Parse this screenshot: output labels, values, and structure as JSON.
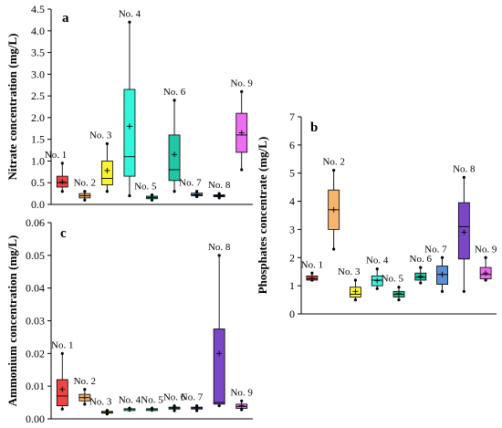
{
  "chart_data": [
    {
      "panel": "a",
      "type": "box",
      "ylabel": "Nitrate concentration (mg/L)",
      "ylim": [
        0,
        4.5
      ],
      "yticks": [
        "0.0",
        "0.5",
        "1.0",
        "1.5",
        "2.0",
        "2.5",
        "3.0",
        "3.5",
        "4.0",
        "4.5"
      ],
      "boxes": [
        {
          "label": "No. 1",
          "color": "#ef4444",
          "min": 0.3,
          "q1": 0.4,
          "median": 0.5,
          "q3": 0.65,
          "max": 0.95,
          "mean": 0.52
        },
        {
          "label": "No. 2",
          "color": "#f5b56d",
          "min": 0.1,
          "q1": 0.15,
          "median": 0.2,
          "q3": 0.25,
          "max": 0.3,
          "mean": 0.2
        },
        {
          "label": "No. 3",
          "color": "#f9f42e",
          "min": 0.3,
          "q1": 0.45,
          "median": 0.6,
          "q3": 1.0,
          "max": 1.4,
          "mean": 0.78
        },
        {
          "label": "No. 4",
          "color": "#33f5d9",
          "min": 0.2,
          "q1": 0.65,
          "median": 1.1,
          "q3": 2.65,
          "max": 4.2,
          "mean": 1.8
        },
        {
          "label": "No. 5",
          "color": "#17bf8c",
          "min": 0.1,
          "q1": 0.13,
          "median": 0.16,
          "q3": 0.19,
          "max": 0.22,
          "mean": 0.16
        },
        {
          "label": "No. 6",
          "color": "#1fc7a7",
          "min": 0.3,
          "q1": 0.55,
          "median": 0.8,
          "q3": 1.6,
          "max": 2.4,
          "mean": 1.15
        },
        {
          "label": "No. 7",
          "color": "#5aa1e3",
          "min": 0.18,
          "q1": 0.2,
          "median": 0.22,
          "q3": 0.26,
          "max": 0.3,
          "mean": 0.23
        },
        {
          "label": "No. 8",
          "color": "#7b46c7",
          "min": 0.15,
          "q1": 0.18,
          "median": 0.2,
          "q3": 0.22,
          "max": 0.25,
          "mean": 0.2
        },
        {
          "label": "No. 9",
          "color": "#ee6cf2",
          "min": 0.8,
          "q1": 1.2,
          "median": 1.6,
          "q3": 2.1,
          "max": 2.6,
          "mean": 1.65
        }
      ]
    },
    {
      "panel": "b",
      "type": "box",
      "ylabel": "Phosphates concentrate (mg/L)",
      "ylim": [
        0,
        7
      ],
      "yticks": [
        "0",
        "1",
        "2",
        "3",
        "4",
        "5",
        "6",
        "7"
      ],
      "boxes": [
        {
          "label": "No. 1",
          "color": "#ef4444",
          "min": 1.2,
          "q1": 1.2,
          "median": 1.25,
          "q3": 1.35,
          "max": 1.45,
          "mean": 1.27
        },
        {
          "label": "No. 2",
          "color": "#f5b56d",
          "min": 2.3,
          "q1": 3.0,
          "median": 3.7,
          "q3": 4.4,
          "max": 5.1,
          "mean": 3.7
        },
        {
          "label": "No. 3",
          "color": "#f9f42e",
          "min": 0.5,
          "q1": 0.6,
          "median": 0.7,
          "q3": 0.95,
          "max": 1.2,
          "mean": 0.8
        },
        {
          "label": "No. 4",
          "color": "#33f5d9",
          "min": 0.9,
          "q1": 1.0,
          "median": 1.2,
          "q3": 1.35,
          "max": 1.6,
          "mean": 1.18
        },
        {
          "label": "No. 5",
          "color": "#17bf8c",
          "min": 0.5,
          "q1": 0.6,
          "median": 0.7,
          "q3": 0.8,
          "max": 0.95,
          "mean": 0.72
        },
        {
          "label": "No. 6",
          "color": "#1fc7a7",
          "min": 1.1,
          "q1": 1.2,
          "median": 1.3,
          "q3": 1.45,
          "max": 1.65,
          "mean": 1.33
        },
        {
          "label": "No. 7",
          "color": "#5a8fd8",
          "min": 0.8,
          "q1": 1.05,
          "median": 1.4,
          "q3": 1.7,
          "max": 2.0,
          "mean": 1.4
        },
        {
          "label": "No. 8",
          "color": "#7b46c7",
          "min": 0.8,
          "q1": 1.95,
          "median": 3.1,
          "q3": 3.95,
          "max": 4.85,
          "mean": 2.9
        },
        {
          "label": "No. 9",
          "color": "#ee6cf2",
          "min": 1.2,
          "q1": 1.25,
          "median": 1.4,
          "q3": 1.65,
          "max": 2.0,
          "mean": 1.45
        }
      ]
    },
    {
      "panel": "c",
      "type": "box",
      "ylabel": "Ammonium concentration (mg/L)",
      "ylim": [
        0,
        0.06
      ],
      "yticks": [
        "0.00",
        "0.01",
        "0.02",
        "0.03",
        "0.04",
        "0.05",
        "0.06"
      ],
      "boxes": [
        {
          "label": "No. 1",
          "color": "#ef4444",
          "min": 0.003,
          "q1": 0.004,
          "median": 0.007,
          "q3": 0.012,
          "max": 0.02,
          "mean": 0.009
        },
        {
          "label": "No. 2",
          "color": "#f5b56d",
          "min": 0.0045,
          "q1": 0.0055,
          "median": 0.0065,
          "q3": 0.0075,
          "max": 0.009,
          "mean": 0.0065
        },
        {
          "label": "No. 3",
          "color": "#f9f42e",
          "min": 0.0015,
          "q1": 0.0018,
          "median": 0.002,
          "q3": 0.0023,
          "max": 0.0026,
          "mean": 0.002
        },
        {
          "label": "No. 4",
          "color": "#33f5d9",
          "min": 0.0027,
          "q1": 0.0028,
          "median": 0.003,
          "q3": 0.0031,
          "max": 0.0032,
          "mean": 0.003
        },
        {
          "label": "No. 5",
          "color": "#17bf8c",
          "min": 0.0027,
          "q1": 0.0028,
          "median": 0.003,
          "q3": 0.0031,
          "max": 0.0032,
          "mean": 0.003
        },
        {
          "label": "No. 6",
          "color": "#1fc7a7",
          "min": 0.0025,
          "q1": 0.003,
          "median": 0.0033,
          "q3": 0.0036,
          "max": 0.004,
          "mean": 0.0033
        },
        {
          "label": "No. 7",
          "color": "#5a8fd8",
          "min": 0.0025,
          "q1": 0.003,
          "median": 0.0033,
          "q3": 0.0036,
          "max": 0.004,
          "mean": 0.0033
        },
        {
          "label": "No. 8",
          "color": "#7b46c7",
          "min": 0.004,
          "q1": 0.0045,
          "median": 0.005,
          "q3": 0.0275,
          "max": 0.05,
          "mean": 0.02
        },
        {
          "label": "No. 9",
          "color": "#ee6cf2",
          "min": 0.0028,
          "q1": 0.0032,
          "median": 0.0038,
          "q3": 0.0045,
          "max": 0.0055,
          "mean": 0.004
        }
      ]
    }
  ]
}
